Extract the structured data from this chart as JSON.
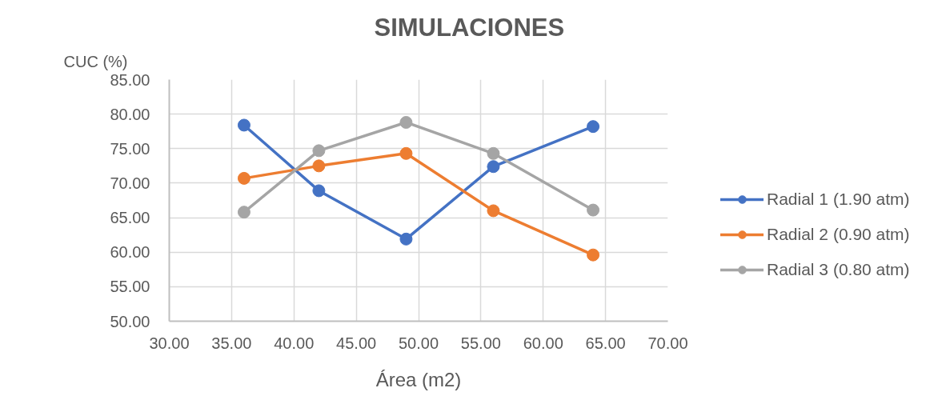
{
  "chart_data": {
    "type": "line",
    "title": "SIMULACIONES",
    "xlabel": "Área (m2)",
    "ylabel": "CUC (%)",
    "x": [
      36,
      42,
      49,
      56,
      64
    ],
    "series": [
      {
        "name": "Radial 1 (1.90 atm)",
        "color": "#4472c4",
        "values": [
          78.4,
          68.9,
          61.9,
          72.4,
          78.2
        ]
      },
      {
        "name": "Radial 2 (0.90 atm)",
        "color": "#ed7d31",
        "values": [
          70.7,
          72.5,
          74.3,
          66.0,
          59.6
        ]
      },
      {
        "name": "Radial 3 (0.80 atm)",
        "color": "#a5a5a5",
        "values": [
          65.8,
          74.7,
          78.8,
          74.3,
          66.1
        ]
      }
    ],
    "xlim": [
      30,
      70
    ],
    "ylim": [
      50,
      85
    ],
    "xticks": [
      {
        "value": 30,
        "label": "30.00"
      },
      {
        "value": 35,
        "label": "35.00"
      },
      {
        "value": 40,
        "label": "40.00"
      },
      {
        "value": 45,
        "label": "45.00"
      },
      {
        "value": 50,
        "label": "50.00"
      },
      {
        "value": 55,
        "label": "55.00"
      },
      {
        "value": 60,
        "label": "60.00"
      },
      {
        "value": 65,
        "label": "65.00"
      },
      {
        "value": 70,
        "label": "70.00"
      }
    ],
    "yticks": [
      {
        "value": 50,
        "label": "50.00"
      },
      {
        "value": 55,
        "label": "55.00"
      },
      {
        "value": 60,
        "label": "60.00"
      },
      {
        "value": 65,
        "label": "65.00"
      },
      {
        "value": 70,
        "label": "70.00"
      },
      {
        "value": 75,
        "label": "75.00"
      },
      {
        "value": 80,
        "label": "80.00"
      },
      {
        "value": 85,
        "label": "85.00"
      }
    ],
    "grid": true,
    "legend": "right",
    "marker": "circle",
    "line_style": "solid"
  }
}
